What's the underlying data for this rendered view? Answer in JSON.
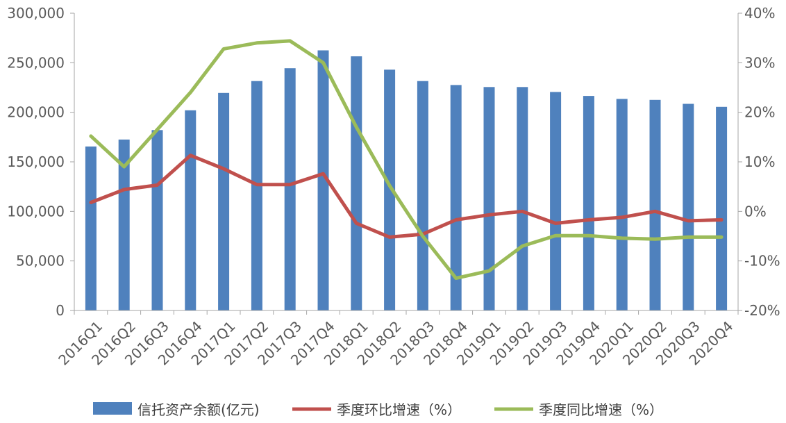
{
  "chart_data": {
    "type": "bar",
    "categories": [
      "2016Q1",
      "2016Q2",
      "2016Q3",
      "2016Q4",
      "2017Q1",
      "2017Q2",
      "2017Q3",
      "2017Q4",
      "2018Q1",
      "2018Q2",
      "2018Q3",
      "2018Q4",
      "2019Q1",
      "2019Q2",
      "2019Q3",
      "2019Q4",
      "2020Q1",
      "2020Q2",
      "2020Q3",
      "2020Q4"
    ],
    "left_axis": {
      "ylim": [
        0,
        300000
      ],
      "ticks": [
        0,
        50000,
        100000,
        150000,
        200000,
        250000,
        300000
      ],
      "tick_labels": [
        "0",
        "50,000",
        "100,000",
        "150,000",
        "200,000",
        "250,000",
        "300,000"
      ]
    },
    "right_axis": {
      "ylim": [
        -20,
        40
      ],
      "ticks": [
        -20,
        -10,
        0,
        10,
        20,
        30,
        40
      ],
      "tick_labels": [
        "-20%",
        "-10%",
        "0%",
        "10%",
        "20%",
        "30%",
        "40%"
      ]
    },
    "series": [
      {
        "name": "信托资产余额(亿元)",
        "type": "bar",
        "axis": "left",
        "color": "#4f81bd",
        "values": [
          165500,
          172500,
          182000,
          202000,
          219500,
          231500,
          244500,
          262500,
          256500,
          243000,
          231500,
          227500,
          225500,
          225500,
          220500,
          216500,
          213500,
          212500,
          208500,
          205500
        ]
      },
      {
        "name": "季度环比增速（%）",
        "type": "line",
        "axis": "right",
        "color": "#c0504d",
        "values": [
          1.8,
          4.4,
          5.3,
          11.3,
          8.6,
          5.4,
          5.4,
          7.6,
          -2.4,
          -5.2,
          -4.6,
          -1.7,
          -0.7,
          0.0,
          -2.4,
          -1.7,
          -1.2,
          0.0,
          -1.9,
          -1.7
        ]
      },
      {
        "name": "季度同比增速（%）",
        "type": "line",
        "axis": "right",
        "color": "#9bbb59",
        "values": [
          15.2,
          9.0,
          16.5,
          24.0,
          32.8,
          34.0,
          34.4,
          30.0,
          17.0,
          5.2,
          -5.0,
          -13.5,
          -12.0,
          -7.0,
          -4.9,
          -4.9,
          -5.4,
          -5.6,
          -5.2,
          -5.2
        ]
      }
    ],
    "grid": false,
    "legend_position": "bottom"
  }
}
